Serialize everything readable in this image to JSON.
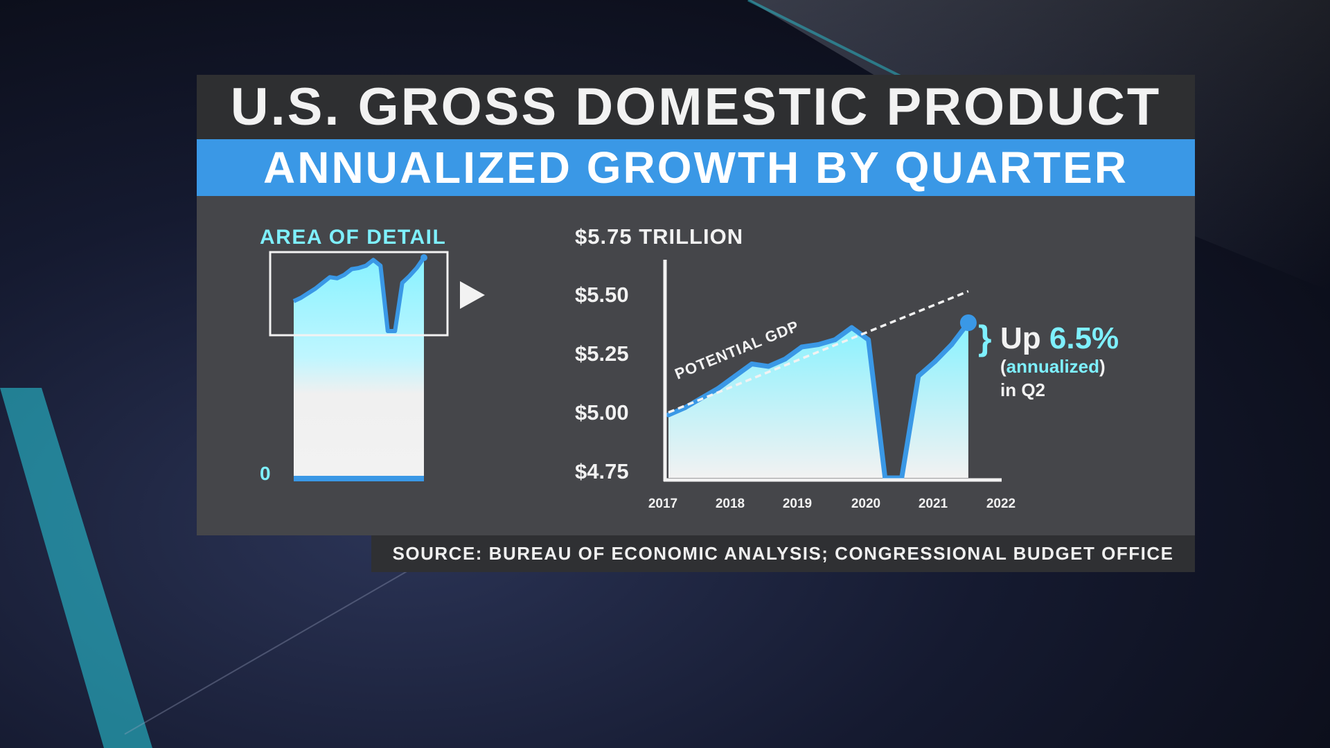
{
  "title": "U.S. GROSS DOMESTIC PRODUCT",
  "subtitle": "ANNUALIZED GROWTH BY QUARTER",
  "source": "SOURCE: BUREAU OF ECONOMIC ANALYSIS; CONGRESSIONAL BUDGET OFFICE",
  "colors": {
    "accent_blue": "#3a98e6",
    "area_top": "#88f2ff",
    "area_bottom": "#f2f2f2",
    "cyan_text": "#7ef0ff",
    "panel": "#45464a",
    "title_bar": "#2e2f31"
  },
  "inset": {
    "label": "AREA OF DETAIL",
    "zero_label": "0",
    "arrow_icon": "play-triangle-icon"
  },
  "chart_data": {
    "type": "area",
    "unit_label": "$5.75 TRILLION",
    "y_tick_labels": [
      "$5.50",
      "$5.25",
      "$5.00",
      "$4.75"
    ],
    "x_tick_labels": [
      "2017",
      "2018",
      "2019",
      "2020",
      "2021",
      "2022"
    ],
    "ylim": [
      4.75,
      5.75
    ],
    "xlim": [
      2017,
      2022
    ],
    "grid": false,
    "series": [
      {
        "x": [
          2017.0,
          2017.25,
          2017.5,
          2017.75,
          2018.0,
          2018.25,
          2018.5,
          2018.75,
          2019.0,
          2019.25,
          2019.5,
          2019.75,
          2020.0,
          2020.25,
          2020.5,
          2020.75,
          2021.0,
          2021.25,
          2021.5
        ],
        "values": [
          5.01,
          5.04,
          5.08,
          5.12,
          5.17,
          5.22,
          5.21,
          5.24,
          5.29,
          5.3,
          5.32,
          5.37,
          5.32,
          4.75,
          4.75,
          5.17,
          5.23,
          5.3,
          5.39
        ]
      }
    ],
    "reference_line": {
      "label": "POTENTIAL GDP",
      "x": [
        2017.0,
        2021.5
      ],
      "values": [
        5.02,
        5.52
      ]
    },
    "annotation": {
      "brace": "}",
      "prefix": "Up ",
      "value": "6.5%",
      "open_paren": "(",
      "highlight": "annualized",
      "close_paren": ")",
      "line3": "in Q2"
    }
  }
}
